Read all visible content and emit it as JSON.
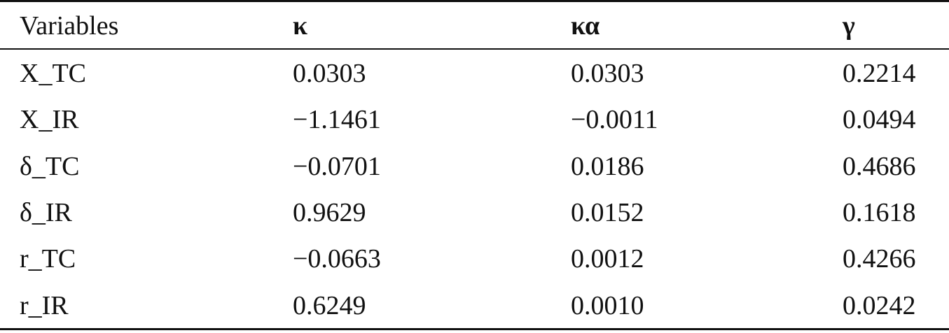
{
  "table": {
    "header": [
      "Variables",
      "κ",
      "κα",
      "γ"
    ],
    "rows": [
      [
        "X_TC",
        "0.0303",
        "0.0303",
        "0.2214"
      ],
      [
        "X_IR",
        "−1.1461",
        "−0.0011",
        "0.0494"
      ],
      [
        "δ_TC",
        "−0.0701",
        "0.0186",
        "0.4686"
      ],
      [
        "δ_IR",
        "0.9629",
        "0.0152",
        "0.1618"
      ],
      [
        "r_TC",
        "−0.0663",
        "0.0012",
        "0.4266"
      ],
      [
        "r_IR",
        "0.6249",
        "0.0010",
        "0.0242"
      ]
    ]
  }
}
